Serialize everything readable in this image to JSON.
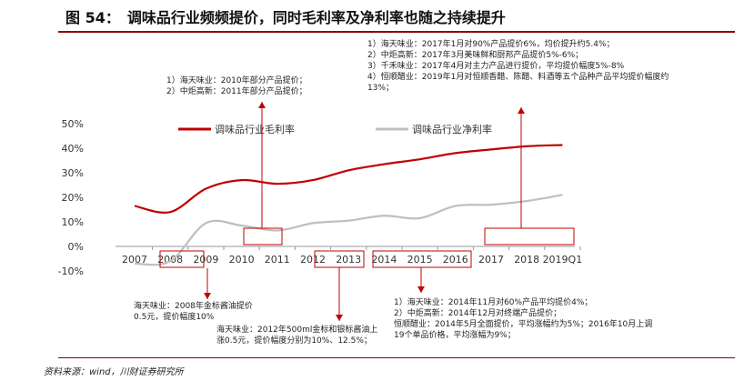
{
  "title": "图 54：　调味品行业频频提价，同时毛利率及净利率也随之持续提升",
  "source": "资料来源：wind，川财证券研究所",
  "colors": {
    "gross": "#c00000",
    "net": "#bfbfbf",
    "accent": "#8b0000"
  },
  "notes": {
    "top_left": [
      "1）海天味业：2010年部分产品提价；",
      "2）中炬高新：2011年部分产品提价；"
    ],
    "top_right": [
      "1）海天味业：2017年1月对90%产品提价6%，均价提升约5.4%；",
      "2）中炬高新：2017年3月美味鲜和厨邦产品提价5%-6%；",
      "3）千禾味业：2017年4月对主力产品进行提价，平均提价幅度5%-8%",
      "4）恒顺醋业：2019年1月对恒顺香醋、陈醋、料酒等五个品种产品平均提价幅度约",
      "13%；"
    ],
    "bottom_left": [
      "海天味业：2008年金标酱油提价",
      "0.5元，提价幅度10%"
    ],
    "bottom_mid": [
      "海天味业：2012年500ml金标和银标酱油上",
      "涨0.5元，提价幅度分别为10%、12.5%；"
    ],
    "bottom_right": [
      "1）海天味业：2014年11月对60%产品平均提价4%；",
      "2）中炬高新：2014年12月对终端产品提价；",
      "恒顺醋业：2014年5月全面提价，平均涨幅约为5%；2016年10月上调",
      "19个单品价格，平均涨幅为9%；"
    ]
  },
  "chart_data": {
    "type": "line",
    "categories": [
      "2007",
      "2008",
      "2009",
      "2010",
      "2011",
      "2012",
      "2013",
      "2014",
      "2015",
      "2016",
      "2017",
      "2018",
      "2019Q1"
    ],
    "yticks": [
      "50%",
      "40%",
      "30%",
      "20%",
      "10%",
      "0%",
      "-10%"
    ],
    "ylim": [
      -10,
      50
    ],
    "legend": [
      "调味品行业毛利率",
      "调味品行业净利率"
    ],
    "series": [
      {
        "name": "调味品行业毛利率",
        "values": [
          16.5,
          14,
          23.5,
          27,
          25.5,
          27,
          31,
          33.5,
          35.5,
          38,
          39.5,
          40.8,
          41.3
        ]
      },
      {
        "name": "调味品行业净利率",
        "values": [
          -7,
          -6,
          9.5,
          8.5,
          6.5,
          9.5,
          10.5,
          12.5,
          11.5,
          16.5,
          17,
          18.5,
          21
        ]
      }
    ]
  }
}
